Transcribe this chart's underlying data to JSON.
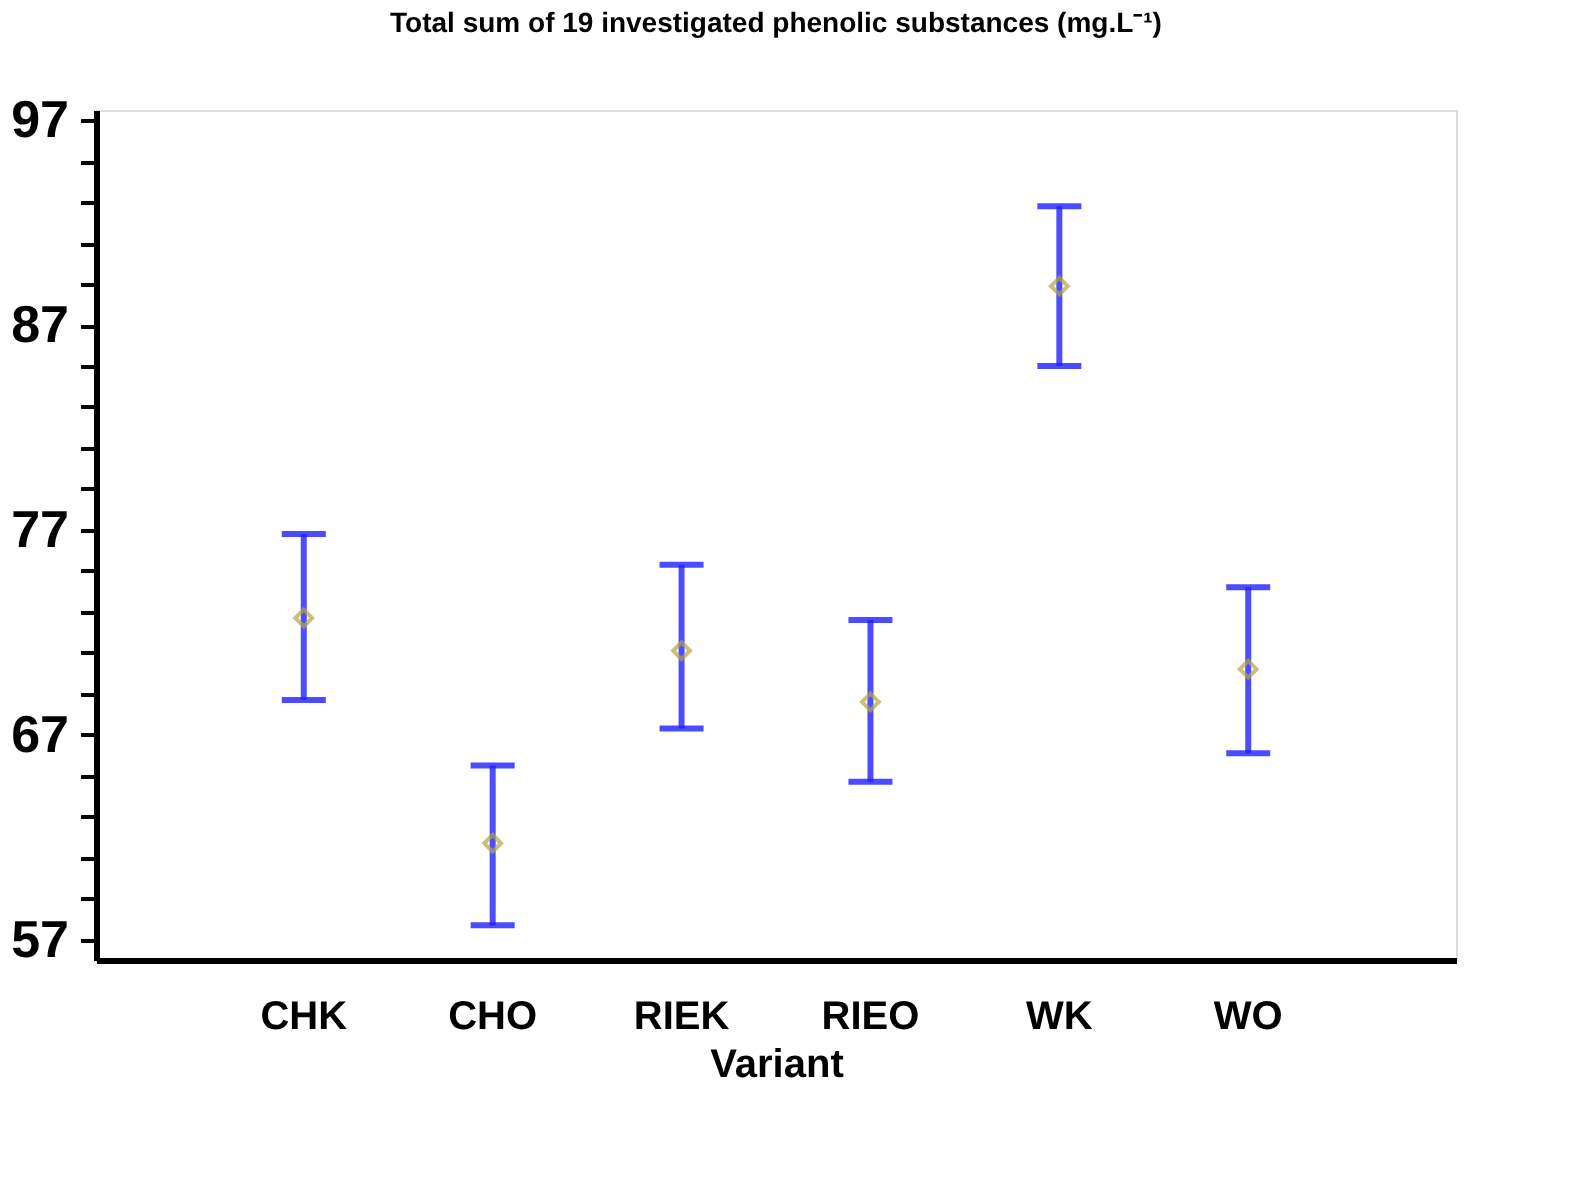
{
  "chart_data": {
    "type": "scatter",
    "title": "Total sum of 19 investigated phenolic substances (mg.L⁻¹)",
    "xlabel": "Variant",
    "categories": [
      "CHK",
      "CHO",
      "RIEK",
      "RIEO",
      "WK",
      "WO"
    ],
    "series": [
      {
        "color": "#b5a642",
        "values": [
          72.7,
          61.7,
          71.1,
          68.6,
          88.9,
          70.2
        ],
        "errors": [
          [
            68.7,
            76.8
          ],
          [
            57.7,
            65.5
          ],
          [
            67.3,
            75.3
          ],
          [
            64.7,
            72.6
          ],
          [
            85.0,
            92.8
          ],
          [
            66.1,
            74.2
          ]
        ]
      }
    ],
    "ylim": [
      56,
      97.5
    ],
    "yticks": [
      57,
      {
        "value": 59,
        "label": null
      },
      {
        "value": 61,
        "label": null
      },
      {
        "value": 63,
        "label": null
      },
      {
        "value": 65,
        "label": null
      },
      67,
      {
        "value": 69,
        "label": null
      },
      {
        "value": 71,
        "label": null
      },
      {
        "value": 73,
        "label": null
      },
      {
        "value": 75,
        "label": null
      },
      77,
      {
        "value": 79,
        "label": null
      },
      {
        "value": 81,
        "label": null
      },
      {
        "value": 83,
        "label": null
      },
      {
        "value": 85,
        "label": null
      },
      87,
      {
        "value": 89,
        "label": null
      },
      {
        "value": 91,
        "label": null
      },
      {
        "value": 93,
        "label": null
      },
      {
        "value": 95,
        "label": null
      },
      97
    ],
    "marker": "diamond",
    "grid": false,
    "legend": false
  }
}
